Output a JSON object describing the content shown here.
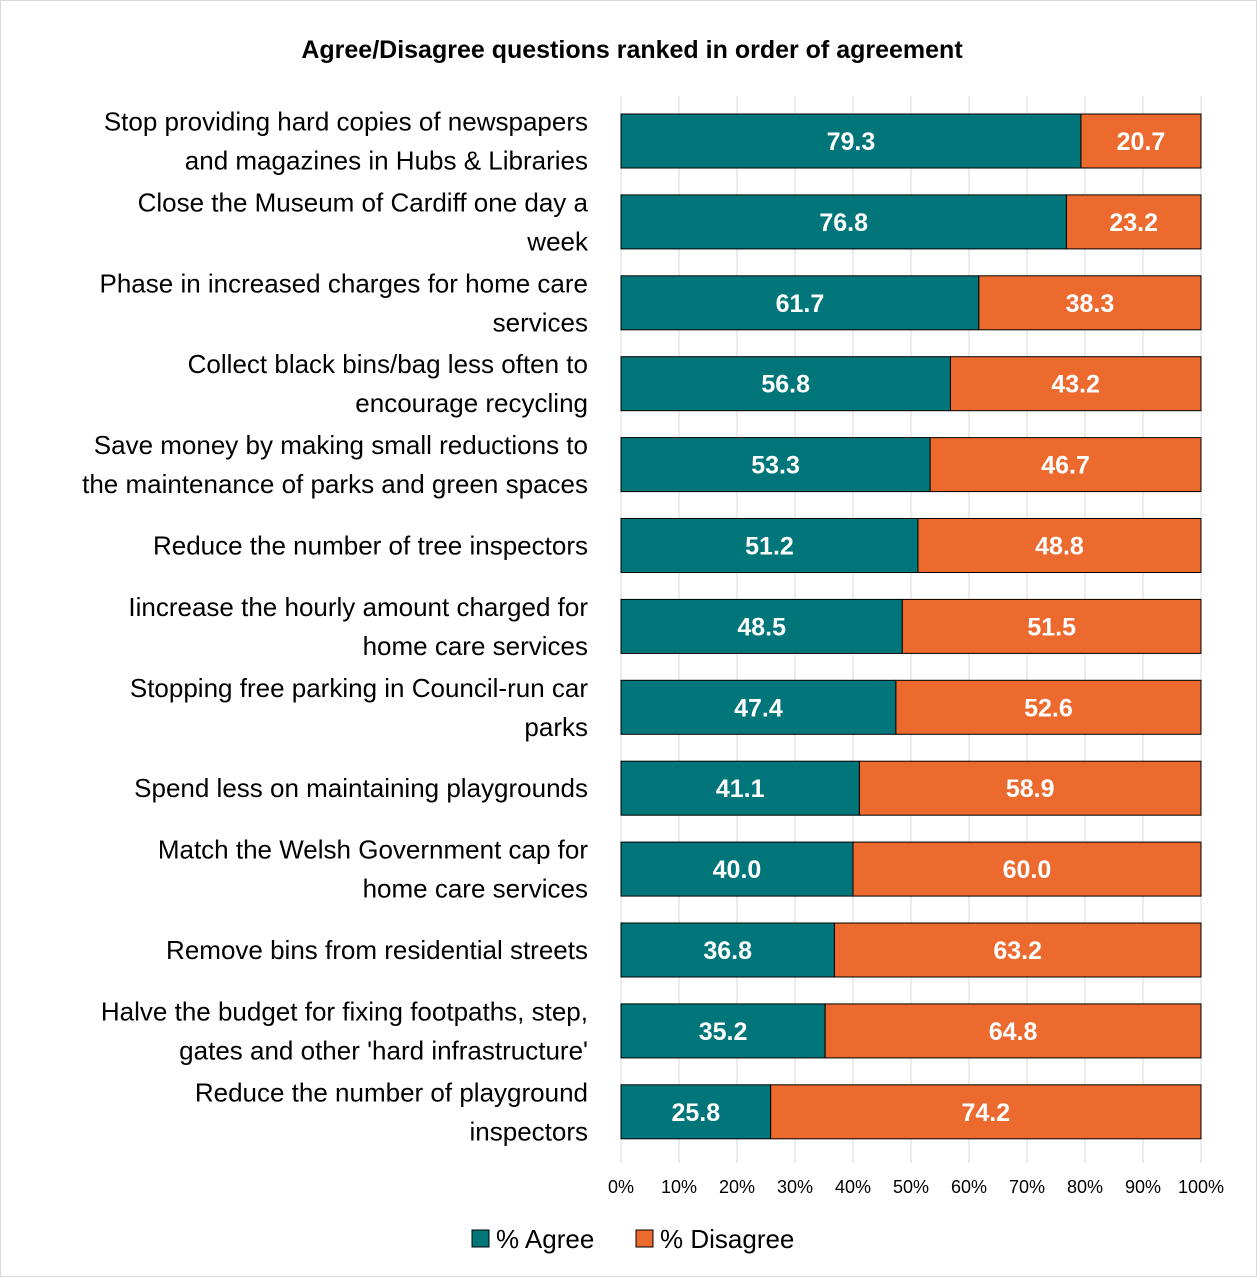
{
  "chart_data": {
    "type": "bar",
    "orientation": "horizontal",
    "stacked": "percent",
    "title": "Agree/Disagree questions ranked in order of agreement",
    "categories": [
      [
        "Stop providing hard copies of newspapers",
        "and magazines in Hubs & Libraries"
      ],
      [
        "Close the Museum of Cardiff one day a",
        "week"
      ],
      [
        "Phase in increased charges for home care",
        "services"
      ],
      [
        "Collect black bins/bag less often to",
        "encourage recycling"
      ],
      [
        "Save money by making small reductions to",
        "the maintenance of parks and green spaces"
      ],
      [
        "Reduce the number of tree inspectors"
      ],
      [
        "Iincrease the hourly amount charged for",
        "home care services"
      ],
      [
        "Stopping free parking in Council-run car",
        "parks"
      ],
      [
        "Spend less on maintaining playgrounds"
      ],
      [
        "Match the Welsh Government cap for",
        "home care services"
      ],
      [
        "Remove bins from residential streets"
      ],
      [
        "Halve the budget for fixing footpaths, step,",
        "gates and other 'hard infrastructure'"
      ],
      [
        "Reduce the number of playground",
        "inspectors"
      ]
    ],
    "series": [
      {
        "name": "% Agree",
        "color": "#00767A",
        "values": [
          79.3,
          76.8,
          61.7,
          56.8,
          53.3,
          51.2,
          48.5,
          47.4,
          41.1,
          40.0,
          36.8,
          35.2,
          25.8
        ],
        "labels": [
          "79.3",
          "76.8",
          "61.7",
          "56.8",
          "53.3",
          "51.2",
          "48.5",
          "47.4",
          "41.1",
          "40.0",
          "36.8",
          "35.2",
          "25.8"
        ]
      },
      {
        "name": "% Disagree",
        "color": "#ED6A2F",
        "values": [
          20.7,
          23.2,
          38.3,
          43.2,
          46.7,
          48.8,
          51.5,
          52.6,
          58.9,
          60.0,
          63.2,
          64.8,
          74.2
        ],
        "labels": [
          "20.7",
          "23.2",
          "38.3",
          "43.2",
          "46.7",
          "48.8",
          "51.5",
          "52.6",
          "58.9",
          "60.0",
          "63.2",
          "64.8",
          "74.2"
        ]
      }
    ],
    "xlim": [
      0,
      100
    ],
    "x_ticks": [
      "0%",
      "10%",
      "20%",
      "30%",
      "40%",
      "50%",
      "60%",
      "70%",
      "80%",
      "90%",
      "100%"
    ],
    "grid": true,
    "legend_position": "bottom"
  }
}
